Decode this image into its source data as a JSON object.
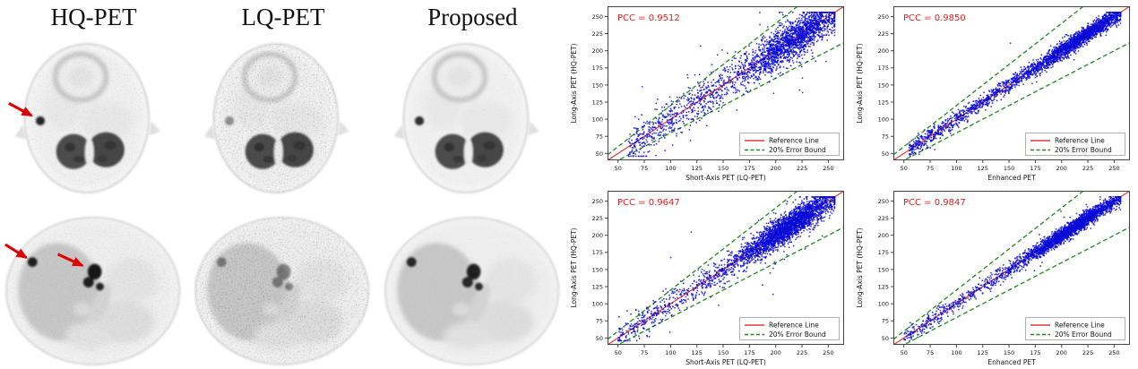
{
  "figure": {
    "columns": [
      "HQ-PET",
      "LQ-PET",
      "Proposed"
    ],
    "rows": [
      "brain axial PET slice",
      "abdomen axial PET slice"
    ],
    "arrow_color": "#dd0000",
    "arrow_annotations": [
      {
        "image": "HQ-PET brain slice",
        "arrows": 1
      },
      {
        "image": "HQ-PET abdomen slice",
        "arrows": 2
      }
    ]
  },
  "colors": {
    "pcc_text": "#e02020",
    "reference_line": "#e23b3b",
    "error_bound_line": "#1d8a1d",
    "points": "#0b0bd6",
    "spine": "#444444",
    "tick_text": "#111111",
    "legend_border": "#b0b0b0",
    "figure_bg": "#ffffff"
  },
  "chart_data": [
    {
      "type": "scatter",
      "pcc": 0.9512,
      "pcc_label": "PCC = 0.9512",
      "xlabel": "Short-Axis PET (LQ-PET)",
      "ylabel": "Long-Axis PET (HQ-PET)",
      "xlim": [
        40,
        265
      ],
      "ylim": [
        40,
        265
      ],
      "xticks": [
        50,
        75,
        100,
        125,
        150,
        175,
        200,
        225,
        250
      ],
      "yticks": [
        50,
        75,
        100,
        125,
        150,
        175,
        200,
        225,
        250
      ],
      "reference_line": "y = x",
      "error_bounds": [
        "y = 1.2x",
        "y = 0.8x"
      ],
      "legend": [
        "Reference Line",
        "20% Error Bound"
      ],
      "legend_position": "lower right",
      "scatter": {
        "n": 2600,
        "dense_frac": 0.72,
        "dense_center": 220,
        "dense_sigma": 24,
        "sparse_min": 60,
        "sparse_max": 205,
        "noise_sigma": 14,
        "outlier_frac": 0.05,
        "outlier_sigma": 32,
        "seed": 11
      }
    },
    {
      "type": "scatter",
      "pcc": 0.985,
      "pcc_label": "PCC = 0.9850",
      "xlabel": "Enhanced PET",
      "ylabel": "Long-Axis PET (HQ-PET)",
      "xlim": [
        40,
        265
      ],
      "ylim": [
        40,
        265
      ],
      "xticks": [
        50,
        75,
        100,
        125,
        150,
        175,
        200,
        225,
        250
      ],
      "yticks": [
        50,
        75,
        100,
        125,
        150,
        175,
        200,
        225,
        250
      ],
      "reference_line": "y = x",
      "error_bounds": [
        "y = 1.2x",
        "y = 0.8x"
      ],
      "legend": [
        "Reference Line",
        "20% Error Bound"
      ],
      "legend_position": "lower right",
      "scatter": {
        "n": 3000,
        "dense_frac": 0.66,
        "dense_center": 222,
        "dense_sigma": 24,
        "sparse_min": 55,
        "sparse_max": 200,
        "noise_sigma": 6,
        "outlier_frac": 0.012,
        "outlier_sigma": 18,
        "seed": 22
      }
    },
    {
      "type": "scatter",
      "pcc": 0.9647,
      "pcc_label": "PCC = 0.9647",
      "xlabel": "Short-Axis PET (LQ-PET)",
      "ylabel": "Long-Axis PET (HQ-PET)",
      "xlim": [
        40,
        265
      ],
      "ylim": [
        40,
        265
      ],
      "xticks": [
        50,
        75,
        100,
        125,
        150,
        175,
        200,
        225,
        250
      ],
      "yticks": [
        50,
        75,
        100,
        125,
        150,
        175,
        200,
        225,
        250
      ],
      "reference_line": "y = x",
      "error_bounds": [
        "y = 1.2x",
        "y = 0.8x"
      ],
      "legend": [
        "Reference Line",
        "20% Error Bound"
      ],
      "legend_position": "lower right",
      "scatter": {
        "n": 3400,
        "dense_frac": 0.86,
        "dense_center": 212,
        "dense_sigma": 26,
        "sparse_min": 50,
        "sparse_max": 160,
        "noise_sigma": 10,
        "outlier_frac": 0.025,
        "outlier_sigma": 28,
        "seed": 33
      }
    },
    {
      "type": "scatter",
      "pcc": 0.9847,
      "pcc_label": "PCC = 0.9847",
      "xlabel": "Enhanced PET",
      "ylabel": "Long-Axis PET (HQ-PET)",
      "xlim": [
        40,
        265
      ],
      "ylim": [
        40,
        265
      ],
      "xticks": [
        50,
        75,
        100,
        125,
        150,
        175,
        200,
        225,
        250
      ],
      "yticks": [
        50,
        75,
        100,
        125,
        150,
        175,
        200,
        225,
        250
      ],
      "reference_line": "y = x",
      "error_bounds": [
        "y = 1.2x",
        "y = 0.8x"
      ],
      "legend": [
        "Reference Line",
        "20% Error Bound"
      ],
      "legend_position": "lower right",
      "scatter": {
        "n": 3000,
        "dense_frac": 0.86,
        "dense_center": 210,
        "dense_sigma": 26,
        "sparse_min": 50,
        "sparse_max": 160,
        "noise_sigma": 5.5,
        "outlier_frac": 0.012,
        "outlier_sigma": 16,
        "seed": 44
      }
    }
  ]
}
